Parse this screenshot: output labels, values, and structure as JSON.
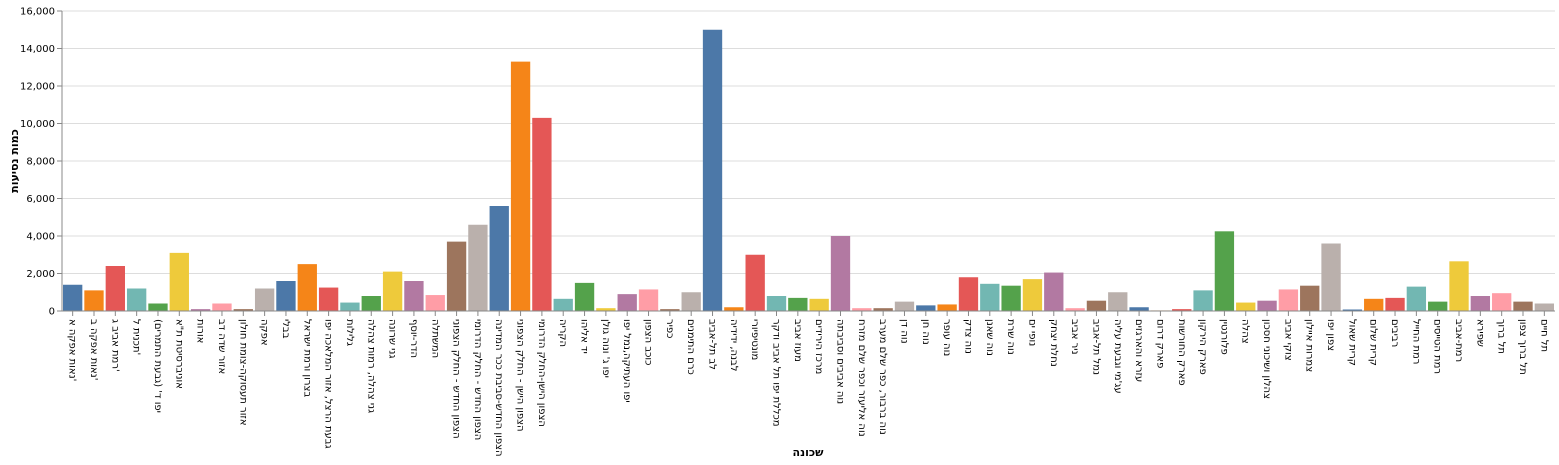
{
  "chart_data": {
    "type": "bar",
    "x_label": "שכונה",
    "y_label": "כמות נסיעות",
    "categories": [
      "נאות אפקה א'",
      "נאות אפקה ב'",
      "רמת אביב ג'",
      "תכנית ל'",
      "יפו ד' (גבעת התמרים)",
      "אוניברסיטת ת\"א",
      "אורות",
      "אזור שדה דב",
      "אזור תעסוקה-צומת חולון",
      "אפקה",
      "בבלי",
      "בצרון ורמת ישראל",
      "גבעת הרצל, אזור המלאכה יפו",
      "גלילות",
      "גני צהלה, רמות צהלה",
      "גני שרונה",
      "הדר-יוסף",
      "המשתלה",
      "הצפון החדש - החלק הצפוני",
      "הצפון החדש - החלק הדרומי",
      "הצפון החדש-סביבת ככר המדינה",
      "הצפון הישן - החלק הצפוני",
      "הצפון הישן-החלק הדרומי",
      "הקריה",
      "יד אליהו",
      "יפו ג' ונוה גולן",
      "יפו העתיקה,נמל יפו",
      "כוכב הצפון",
      "כפיר",
      "כרם התימנים",
      "לב תל-אביב",
      "לבנה, ידידיה",
      "מונטיפיורי",
      "מכללת יפו תל אביב ודקר",
      "מעוז אביב",
      "מרכז הירידים",
      "נוה אביבים וסביבתה",
      "נוה אליעזר וכפר שלם מזרח",
      "נוה ברבור, כפר שלם מערב",
      "נוה דן",
      "נוה חן",
      "נוה עופר",
      "נוה צדק",
      "נוה שאנן",
      "נוה שרת",
      "נופי ים",
      "נחלת יצחק",
      "ניר אביב",
      "נמל תל-אביב",
      "עג'מי וגבעת עליה",
      "עזרא והארגזים",
      "פארק דרום",
      "פארק החורשות",
      "פארק הירקון",
      "פלורנטין",
      "צהלה",
      "צהלון ושיכוני חסכון",
      "צוקי אביב",
      "צמרות איילון",
      "צפון יפו",
      "קרית שאול",
      "קרית שלום",
      "רביבים",
      "רמת החייל",
      "רמת הטייסים",
      "רמת-אביב",
      "שפירא",
      "תל ברוך",
      "תל ברוך צפון",
      "תל חיים"
    ],
    "values": [
      1400,
      1100,
      2400,
      1200,
      400,
      3100,
      100,
      400,
      100,
      1200,
      1600,
      2500,
      1250,
      450,
      800,
      2100,
      1600,
      850,
      3700,
      4600,
      5600,
      13300,
      10300,
      650,
      1500,
      150,
      900,
      1150,
      100,
      1000,
      15000,
      200,
      3000,
      800,
      700,
      650,
      4000,
      150,
      150,
      500,
      300,
      350,
      1800,
      1450,
      1350,
      1700,
      2050,
      150,
      550,
      1000,
      200,
      30,
      100,
      1100,
      4250,
      450,
      550,
      1150,
      1350,
      3600,
      80,
      650,
      700,
      1300,
      500,
      2650,
      800,
      950,
      500,
      400
    ],
    "colors": [
      "#4c78a8",
      "#f58518",
      "#e45756",
      "#72b7b2",
      "#54a24b",
      "#eeca3b",
      "#b279a2",
      "#ff9da6",
      "#9d755d",
      "#bab0ac"
    ],
    "ylim": [
      0,
      16000
    ],
    "yticks": [
      0,
      {
        "value": 2000,
        "label": "2,000"
      },
      {
        "value": 4000,
        "label": "4,000"
      },
      {
        "value": 6000,
        "label": "6,000"
      },
      {
        "value": 8000,
        "label": "8,000"
      },
      {
        "value": 10000,
        "label": "10,000"
      },
      {
        "value": 12000,
        "label": "12,000"
      },
      {
        "value": 14000,
        "label": "14,000"
      },
      {
        "value": 16000,
        "label": "16,000"
      }
    ],
    "grid": true
  }
}
